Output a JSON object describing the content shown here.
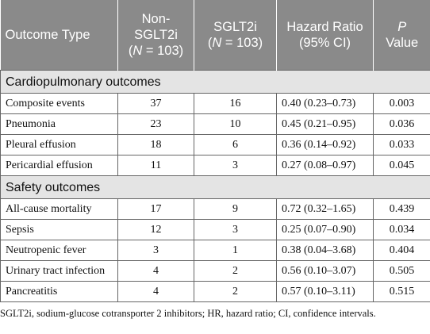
{
  "table": {
    "header": [
      [
        "Outcome Type"
      ],
      [
        "Non-SGLT2i",
        "(",
        "N",
        " = 103)"
      ],
      [
        "SGLT2i",
        "(",
        "N",
        " = 103)"
      ],
      [
        "Hazard Ratio",
        "(95% CI)"
      ],
      [
        "P",
        "Value"
      ]
    ],
    "sections": [
      {
        "title": "Cardiopulmonary outcomes",
        "rows": [
          [
            "Composite events",
            "37",
            "16",
            "0.40 (0.23–0.73)",
            "0.003"
          ],
          [
            "Pneumonia",
            "23",
            "10",
            "0.45 (0.21–0.95)",
            "0.036"
          ],
          [
            "Pleural effusion",
            "18",
            "6",
            "0.36 (0.14–0.92)",
            "0.033"
          ],
          [
            "Pericardial effusion",
            "11",
            "3",
            "0.27 (0.08–0.97)",
            "0.045"
          ]
        ]
      },
      {
        "title": "Safety outcomes",
        "rows": [
          [
            "All-cause mortality",
            "17",
            "9",
            "0.72 (0.32–1.65)",
            "0.439"
          ],
          [
            "Sepsis",
            "12",
            "3",
            "0.25 (0.07–0.90)",
            "0.034"
          ],
          [
            "Neutropenic fever",
            "3",
            "1",
            "0.38 (0.04–3.68)",
            "0.404"
          ],
          [
            "Urinary tract infection",
            "4",
            "2",
            "0.56 (0.10–3.07)",
            "0.505"
          ],
          [
            "Pancreatitis",
            "4",
            "2",
            "0.57 (0.10–3.11)",
            "0.515"
          ]
        ]
      }
    ],
    "footnote": "SGLT2i, sodium-glucose cotransporter 2 inhibitors; HR, hazard ratio; CI, confidence intervals."
  }
}
